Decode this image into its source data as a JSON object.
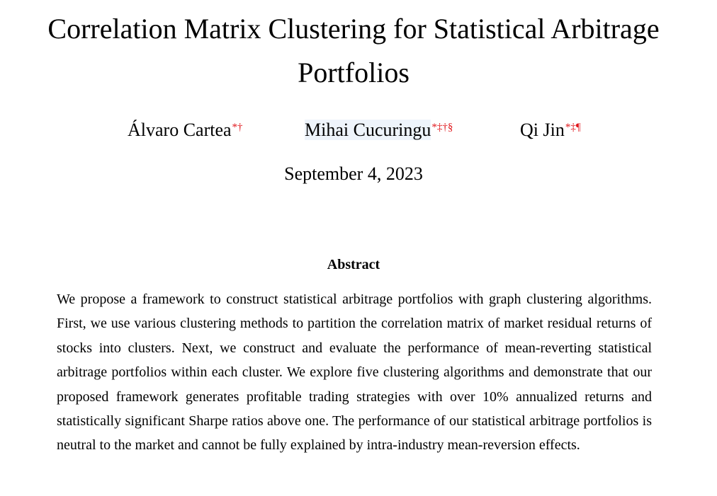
{
  "paper": {
    "title": "Correlation Matrix Clustering for Statistical Arbitrage Portfolios",
    "authors": [
      {
        "name": "Álvaro Cartea",
        "marks": "*†"
      },
      {
        "name": "Mihai Cucuringu",
        "marks": "*‡†§"
      },
      {
        "name": "Qi Jin",
        "marks": "*‡¶"
      }
    ],
    "date": "September 4, 2023",
    "abstract_heading": "Abstract",
    "abstract_text": "We propose a framework to construct statistical arbitrage portfolios with graph clustering al­gorithms. First, we use various clustering methods to partition the correlation matrix of market residual returns of stocks into clusters. Next, we construct and evaluate the performance of mean-reverting statistical arbitrage portfolios within each cluster. We explore five clustering algorithms and demonstrate that our proposed framework generates profitable trading strate­gies with over 10% annualized returns and statistically significant Sharpe ratios above one. The performance of our statistical arbitrage portfolios is neutral to the market and cannot be fully explained by intra-industry mean-reversion effects."
  },
  "colors": {
    "footnote_mark": "#e0161b",
    "author_highlight": "#eef4fb",
    "text": "#000000",
    "background": "#ffffff"
  }
}
